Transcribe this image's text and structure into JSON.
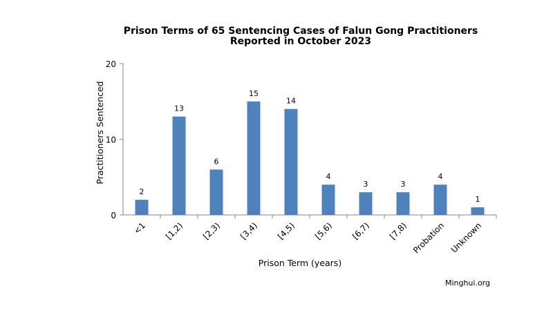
{
  "chart_data": {
    "type": "bar",
    "title": "Prison Terms of 65 Sentencing Cases of Falun Gong Practitioners",
    "subtitle": "Reported in October 2023",
    "xlabel": "Prison Term (years)",
    "ylabel": "Practitioners Sentenced",
    "categories": [
      "<1",
      "[1,2)",
      "[2,3)",
      "[3,4)",
      "[4,5)",
      "[5,6)",
      "[6,7)",
      "[7,8)",
      "Probation",
      "Unknown"
    ],
    "values": [
      2,
      13,
      6,
      15,
      14,
      4,
      3,
      3,
      4,
      1
    ],
    "ylim": [
      0,
      20
    ],
    "yticks": [
      0,
      10,
      20
    ],
    "grid": false,
    "legend": "none",
    "bar_color": "#4f81bd"
  },
  "credit": "Minghui.org"
}
